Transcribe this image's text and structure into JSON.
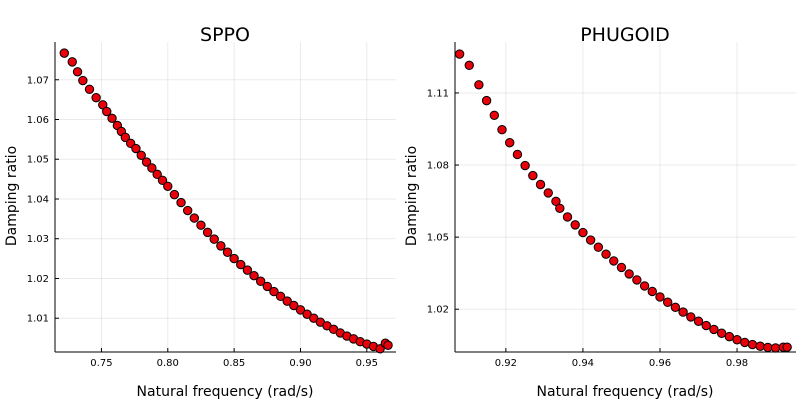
{
  "chart_data": [
    {
      "type": "scatter",
      "title": "SPPO",
      "xlabel": "Natural frequency (rad/s)",
      "ylabel": "Damping ratio",
      "xlim": [
        0.715,
        0.972
      ],
      "ylim": [
        1.0015,
        1.0795
      ],
      "xticks": [
        0.75,
        0.8,
        0.85,
        0.9,
        0.95
      ],
      "xtick_labels": [
        "0.75",
        "0.80",
        "0.85",
        "0.90",
        "0.95"
      ],
      "yticks": [
        1.01,
        1.02,
        1.03,
        1.04,
        1.05,
        1.06,
        1.07
      ],
      "ytick_labels": [
        "1.01",
        "1.02",
        "1.03",
        "1.04",
        "1.05",
        "1.06",
        "1.07"
      ],
      "grid": true,
      "marker_color": "#e8000b",
      "x": [
        0.722,
        0.728,
        0.732,
        0.736,
        0.741,
        0.746,
        0.751,
        0.754,
        0.758,
        0.762,
        0.765,
        0.768,
        0.772,
        0.776,
        0.78,
        0.784,
        0.788,
        0.792,
        0.796,
        0.8,
        0.805,
        0.81,
        0.815,
        0.82,
        0.825,
        0.83,
        0.835,
        0.84,
        0.845,
        0.85,
        0.855,
        0.86,
        0.865,
        0.87,
        0.875,
        0.88,
        0.885,
        0.89,
        0.895,
        0.9,
        0.905,
        0.91,
        0.915,
        0.92,
        0.925,
        0.93,
        0.935,
        0.94,
        0.945,
        0.95,
        0.955,
        0.96,
        0.964,
        0.966
      ],
      "y": [
        1.0767,
        1.0745,
        1.072,
        1.0698,
        1.0676,
        1.0655,
        1.0637,
        1.062,
        1.0603,
        1.0585,
        1.057,
        1.0555,
        1.054,
        1.0527,
        1.051,
        1.0493,
        1.0478,
        1.0462,
        1.0447,
        1.0432,
        1.0411,
        1.0391,
        1.0371,
        1.0352,
        1.0334,
        1.0316,
        1.0299,
        1.0282,
        1.0266,
        1.025,
        1.0235,
        1.0221,
        1.0207,
        1.0193,
        1.018,
        1.0167,
        1.0155,
        1.0143,
        1.0132,
        1.0121,
        1.011,
        1.01,
        1.009,
        1.0081,
        1.0072,
        1.0063,
        1.0055,
        1.0048,
        1.0041,
        1.0035,
        1.0029,
        1.0023,
        1.0037,
        1.0032
      ]
    },
    {
      "type": "scatter",
      "title": "PHUGOID",
      "xlabel": "Natural frequency (rad/s)",
      "ylabel": "Damping ratio",
      "xlim": [
        0.9068,
        0.9953
      ],
      "ylim": [
        1.0022,
        1.1312
      ],
      "xticks": [
        0.92,
        0.94,
        0.96,
        0.98
      ],
      "xtick_labels": [
        "0.92",
        "0.94",
        "0.96",
        "0.98"
      ],
      "yticks": [
        1.02,
        1.05,
        1.08,
        1.11
      ],
      "ytick_labels": [
        "1.02",
        "1.05",
        "1.08",
        "1.11"
      ],
      "grid": true,
      "marker_color": "#e8000b",
      "x": [
        0.908,
        0.9105,
        0.913,
        0.915,
        0.917,
        0.919,
        0.921,
        0.923,
        0.925,
        0.927,
        0.929,
        0.931,
        0.933,
        0.934,
        0.936,
        0.938,
        0.94,
        0.942,
        0.944,
        0.946,
        0.948,
        0.95,
        0.952,
        0.954,
        0.956,
        0.958,
        0.96,
        0.962,
        0.964,
        0.966,
        0.968,
        0.97,
        0.972,
        0.974,
        0.976,
        0.978,
        0.98,
        0.982,
        0.984,
        0.986,
        0.988,
        0.99,
        0.992,
        0.993
      ],
      "y": [
        1.1262,
        1.1215,
        1.1134,
        1.1068,
        1.1007,
        1.0947,
        1.0893,
        1.0844,
        1.0798,
        1.0756,
        1.0719,
        1.0684,
        1.0649,
        1.062,
        1.0584,
        1.0551,
        1.0519,
        1.0488,
        1.0458,
        1.0429,
        1.0401,
        1.0374,
        1.0347,
        1.0322,
        1.0297,
        1.0274,
        1.0251,
        1.0229,
        1.0208,
        1.0188,
        1.0168,
        1.015,
        1.0132,
        1.0116,
        1.01,
        1.0086,
        1.0073,
        1.0062,
        1.0053,
        1.0046,
        1.0041,
        1.0039,
        1.0042,
        1.0042
      ]
    }
  ]
}
